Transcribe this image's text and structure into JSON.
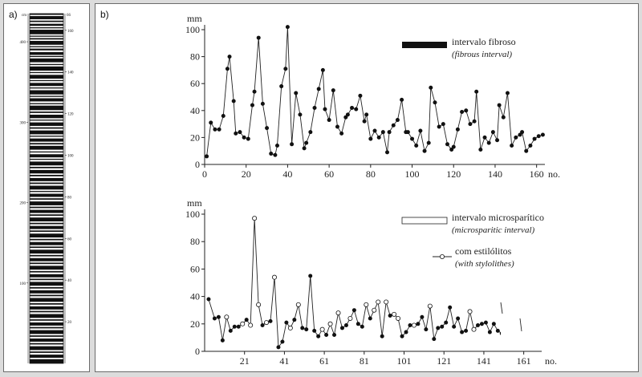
{
  "panel_a": {
    "label": "a)",
    "left_scale_unit": "cm",
    "left_ticks": [
      "100",
      "200",
      "300",
      "400"
    ],
    "right_ticks": [
      "20",
      "40",
      "60",
      "80",
      "100",
      "120",
      "140",
      "160"
    ],
    "right_top": "66",
    "left_top": "cm",
    "bands": [
      [
        0.0,
        0.35
      ],
      [
        0.7,
        1.6
      ],
      [
        2.0,
        2.4
      ],
      [
        2.9,
        3.5
      ],
      [
        3.9,
        4.2
      ],
      [
        4.6,
        5.9
      ],
      [
        6.3,
        6.6
      ],
      [
        7.0,
        7.4
      ],
      [
        7.8,
        8.9
      ],
      [
        9.3,
        9.6
      ],
      [
        10.0,
        10.5
      ],
      [
        11.0,
        11.8
      ],
      [
        12.1,
        12.4
      ],
      [
        12.8,
        13.9
      ],
      [
        14.4,
        14.7
      ],
      [
        15.1,
        16.3
      ],
      [
        16.7,
        17.0
      ],
      [
        17.5,
        18.6
      ],
      [
        19.0,
        19.3
      ],
      [
        19.8,
        20.7
      ],
      [
        21.1,
        21.4
      ],
      [
        21.9,
        23.1
      ],
      [
        23.5,
        23.8
      ],
      [
        24.2,
        25.1
      ],
      [
        25.6,
        25.9
      ],
      [
        26.3,
        27.6
      ],
      [
        28.0,
        28.4
      ],
      [
        28.9,
        29.9
      ],
      [
        30.3,
        30.6
      ],
      [
        31.1,
        32.1
      ],
      [
        32.5,
        32.9
      ],
      [
        33.4,
        34.5
      ],
      [
        34.9,
        35.2
      ],
      [
        35.7,
        36.6
      ],
      [
        37.0,
        37.4
      ],
      [
        37.8,
        38.9
      ],
      [
        39.4,
        39.7
      ],
      [
        40.2,
        41.1
      ],
      [
        41.5,
        41.8
      ],
      [
        42.3,
        43.4
      ],
      [
        43.8,
        44.2
      ],
      [
        44.7,
        45.7
      ],
      [
        46.1,
        46.5
      ],
      [
        47.0,
        47.9
      ],
      [
        48.3,
        48.7
      ],
      [
        49.2,
        50.3
      ],
      [
        50.7,
        51.0
      ],
      [
        51.5,
        52.4
      ],
      [
        52.8,
        53.2
      ],
      [
        53.7,
        54.8
      ],
      [
        55.2,
        55.6
      ],
      [
        56.1,
        57.0
      ],
      [
        57.4,
        57.8
      ],
      [
        58.3,
        59.4
      ],
      [
        59.8,
        60.2
      ],
      [
        60.7,
        61.6
      ],
      [
        62.0,
        62.4
      ],
      [
        62.9,
        64.0
      ],
      [
        64.4,
        64.8
      ],
      [
        65.3,
        66.2
      ],
      [
        66.6,
        67.0
      ],
      [
        67.5,
        68.6
      ],
      [
        69.0,
        69.4
      ],
      [
        69.9,
        70.8
      ],
      [
        71.2,
        71.6
      ],
      [
        72.1,
        73.2
      ],
      [
        73.6,
        74.0
      ],
      [
        74.5,
        75.4
      ],
      [
        75.8,
        76.2
      ],
      [
        76.7,
        77.8
      ],
      [
        78.2,
        78.6
      ],
      [
        79.1,
        80.0
      ],
      [
        80.4,
        80.8
      ],
      [
        81.3,
        82.4
      ],
      [
        82.8,
        83.2
      ],
      [
        83.7,
        84.6
      ],
      [
        85.0,
        85.4
      ],
      [
        85.9,
        87.0
      ],
      [
        87.4,
        87.8
      ],
      [
        88.3,
        89.2
      ],
      [
        89.6,
        90.0
      ],
      [
        90.5,
        91.6
      ],
      [
        92.0,
        92.4
      ],
      [
        92.9,
        93.8
      ],
      [
        94.2,
        94.6
      ],
      [
        95.1,
        96.2
      ],
      [
        96.6,
        97.0
      ],
      [
        97.5,
        98.4
      ],
      [
        98.8,
        100.0
      ]
    ]
  },
  "panel_b": {
    "label": "b)"
  },
  "chart_data": [
    {
      "type": "line",
      "ylabel": "mm",
      "xlabel": "no.",
      "xlim": [
        0,
        164
      ],
      "ylim": [
        0,
        100
      ],
      "x_ticks": [
        0,
        20,
        40,
        60,
        80,
        100,
        120,
        140,
        160
      ],
      "y_ticks": [
        0,
        20,
        40,
        60,
        80,
        100
      ],
      "legend": {
        "label": "intervalo fibroso",
        "label_en": "(fibrous interval)",
        "swatch_color": "#111111",
        "placement": "top-right"
      },
      "series": [
        {
          "marker": "filled",
          "x": [
            1,
            3,
            5,
            7,
            9,
            11,
            12,
            14,
            15,
            17,
            19,
            21,
            23,
            24,
            26,
            28,
            30,
            32,
            34,
            35,
            37,
            39,
            40,
            42,
            44,
            46,
            48,
            49,
            51,
            53,
            55,
            57,
            58,
            60,
            62,
            64,
            66,
            68,
            69,
            71,
            73,
            75,
            77,
            78,
            80,
            82,
            84,
            86,
            88,
            89,
            91,
            93,
            95,
            97,
            98,
            100,
            102,
            104,
            106,
            108,
            109,
            111,
            113,
            115,
            117,
            119,
            120,
            122,
            124,
            126,
            128,
            130,
            131,
            133,
            135,
            137,
            139,
            141,
            142,
            144,
            146,
            148,
            150,
            152,
            153,
            155,
            157,
            159,
            161,
            163
          ],
          "y": [
            6,
            31,
            26,
            26,
            36,
            71,
            80,
            47,
            23,
            24,
            20,
            19,
            44,
            54,
            94,
            45,
            27,
            8,
            7,
            14,
            58,
            71,
            102,
            15,
            53,
            37,
            12,
            16,
            24,
            42,
            56,
            70,
            41,
            33,
            55,
            28,
            23,
            35,
            37,
            42,
            41,
            51,
            32,
            37,
            19,
            25,
            20,
            24,
            9,
            24,
            29,
            33,
            48,
            24,
            24,
            19,
            14,
            25,
            10,
            16,
            57,
            46,
            28,
            30,
            15,
            11,
            13,
            26,
            39,
            40,
            30,
            32,
            54,
            11,
            20,
            16,
            24,
            18,
            44,
            35,
            53,
            14,
            20,
            22,
            24,
            10,
            14,
            19,
            21,
            22
          ]
        }
      ]
    },
    {
      "type": "line",
      "ylabel": "mm",
      "xlabel": "no.",
      "xlim": [
        1,
        170
      ],
      "ylim": [
        0,
        100
      ],
      "x_ticks": [
        21,
        41,
        61,
        81,
        101,
        121,
        141,
        161
      ],
      "y_ticks": [
        0,
        20,
        40,
        60,
        80,
        100
      ],
      "legend": [
        {
          "label": "intervalo microsparítico",
          "label_en": "(microsparitic interval)",
          "swatch": "open-box",
          "placement": "top-right"
        },
        {
          "label": "com estilólitos",
          "label_en": "(with stylolithes)",
          "swatch": "open-circle",
          "placement": "right"
        }
      ],
      "series": [
        {
          "name": "",
          "x": [
            3,
            6,
            8,
            10,
            12,
            14,
            16,
            18,
            20,
            22,
            24,
            26,
            28,
            30,
            32,
            34,
            36,
            38,
            40,
            42,
            44,
            46,
            48,
            50,
            52,
            54,
            56,
            58,
            60,
            62,
            64,
            66,
            68,
            70,
            72,
            74,
            76,
            78,
            80,
            82,
            84,
            86,
            88,
            90,
            92,
            94,
            96,
            98,
            100,
            102,
            104,
            106,
            108,
            110,
            112,
            114,
            116,
            118,
            120,
            122,
            124,
            126,
            128,
            130,
            132,
            134,
            136,
            138,
            140,
            142,
            144,
            146,
            148,
            150
          ],
          "y": [
            38,
            24,
            25,
            8,
            25,
            15,
            18,
            18,
            20,
            23,
            19,
            97,
            34,
            19,
            21,
            22,
            54,
            3,
            7,
            21,
            17,
            23,
            34,
            17,
            16,
            55,
            15,
            11,
            16,
            12,
            20,
            12,
            28,
            17,
            19,
            24,
            30,
            20,
            18,
            34,
            24,
            30,
            36,
            11,
            36,
            26,
            27,
            24,
            11,
            14,
            19,
            19,
            20,
            25,
            16,
            33,
            9,
            17,
            18,
            21,
            32,
            18,
            24,
            14,
            15,
            29,
            16,
            19,
            20,
            21,
            14,
            20,
            15,
            13
          ],
          "open": [
            false,
            false,
            false,
            false,
            true,
            false,
            false,
            false,
            true,
            false,
            true,
            true,
            true,
            false,
            true,
            false,
            true,
            false,
            false,
            false,
            true,
            false,
            true,
            false,
            false,
            false,
            false,
            false,
            true,
            false,
            true,
            false,
            true,
            false,
            false,
            true,
            false,
            false,
            false,
            true,
            false,
            true,
            true,
            false,
            true,
            false,
            true,
            true,
            false,
            false,
            false,
            true,
            false,
            false,
            false,
            true,
            false,
            false,
            false,
            false,
            false,
            false,
            false,
            false,
            false,
            true,
            true,
            false,
            false,
            false,
            false,
            false,
            false,
            false
          ]
        }
      ]
    }
  ]
}
